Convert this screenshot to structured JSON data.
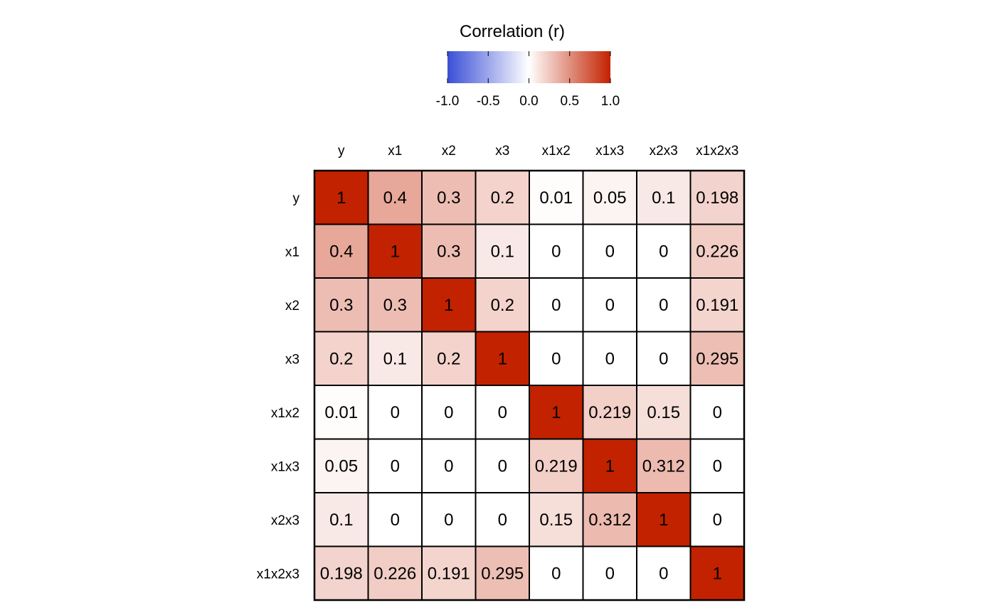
{
  "chart_data": {
    "type": "heatmap",
    "title": "",
    "legend": {
      "title": "Correlation (r)",
      "position": "top",
      "range": [
        -1.0,
        1.0
      ],
      "ticks": [
        -1.0,
        -0.5,
        0.0,
        0.5,
        1.0
      ],
      "tick_labels": [
        "-1.0",
        "-0.5",
        "0.0",
        "0.5",
        "1.0"
      ],
      "colors": {
        "negative": "#3a4fd6",
        "zero": "#ffffff",
        "positive": "#c22200"
      }
    },
    "columns": [
      "y",
      "x1",
      "x2",
      "x3",
      "x1x2",
      "x1x3",
      "x2x3",
      "x1x2x3"
    ],
    "rows": [
      "y",
      "x1",
      "x2",
      "x3",
      "x1x2",
      "x1x3",
      "x2x3",
      "x1x2x3"
    ],
    "values": [
      [
        1,
        0.4,
        0.3,
        0.2,
        0.01,
        0.05,
        0.1,
        0.198
      ],
      [
        0.4,
        1,
        0.3,
        0.1,
        0,
        0,
        0,
        0.226
      ],
      [
        0.3,
        0.3,
        1,
        0.2,
        0,
        0,
        0,
        0.191
      ],
      [
        0.2,
        0.1,
        0.2,
        1,
        0,
        0,
        0,
        0.295
      ],
      [
        0.01,
        0,
        0,
        0,
        1,
        0.219,
        0.15,
        0
      ],
      [
        0.05,
        0,
        0,
        0,
        0.219,
        1,
        0.312,
        0
      ],
      [
        0.1,
        0,
        0,
        0,
        0.15,
        0.312,
        1,
        0
      ],
      [
        0.198,
        0.226,
        0.191,
        0.295,
        0,
        0,
        0,
        1
      ]
    ],
    "grid": true
  }
}
